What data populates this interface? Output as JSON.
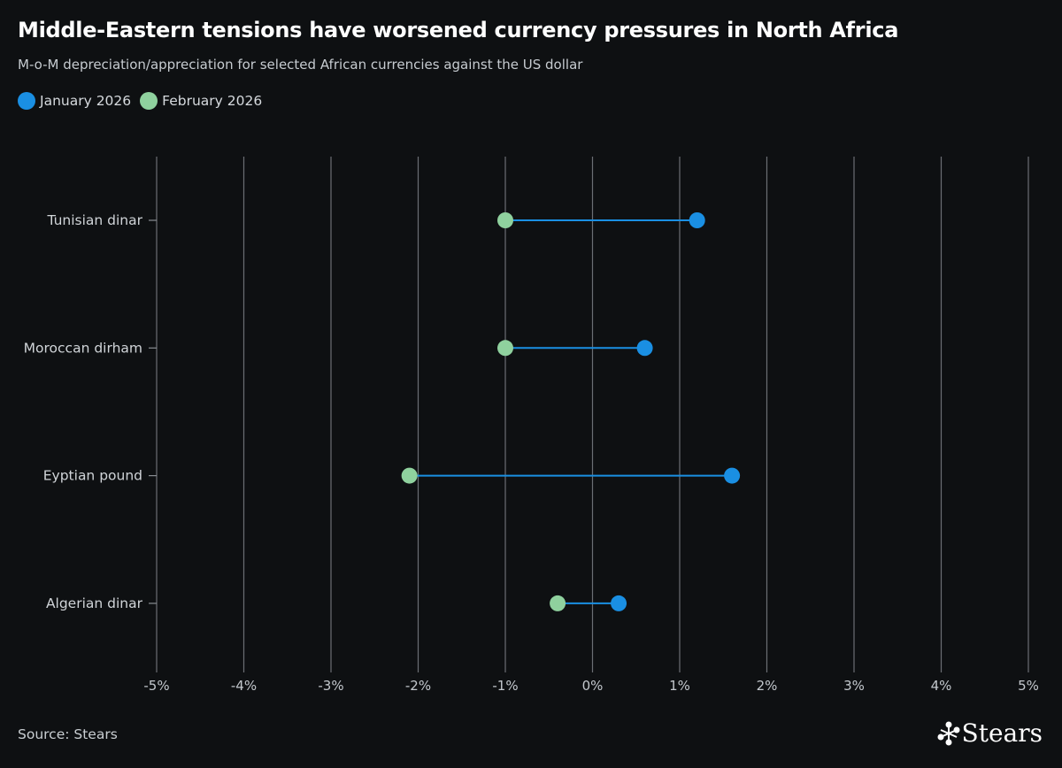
{
  "chart_data": {
    "type": "dumbbell",
    "title": "Middle-Eastern tensions have worsened currency pressures in North Africa",
    "subtitle": "M-o-M depreciation/appreciation for selected African currencies against the US dollar",
    "categories": [
      "Tunisian dinar",
      "Moroccan dirham",
      "Eyptian pound",
      "Algerian dinar"
    ],
    "series": [
      {
        "name": "January 2026",
        "color": "#1a8fe3",
        "values": [
          1.2,
          0.6,
          1.6,
          0.3
        ]
      },
      {
        "name": "February 2026",
        "color": "#8fd19e",
        "values": [
          -1.0,
          -1.0,
          -2.1,
          -0.4
        ]
      }
    ],
    "connector_color": "#1a8fe3",
    "x_ticks": [
      -5,
      -4,
      -3,
      -2,
      -1,
      0,
      1,
      2,
      3,
      4,
      5
    ],
    "x_tick_labels": [
      "-5%",
      "-4%",
      "-3%",
      "-2%",
      "-1%",
      "0%",
      "1%",
      "2%",
      "3%",
      "4%",
      "5%"
    ],
    "xlim": [
      -5,
      5
    ],
    "grid": true,
    "legend_position": "top-left",
    "unit": "%"
  },
  "footer": {
    "source": "Source: Stears",
    "brand": "Stears"
  }
}
